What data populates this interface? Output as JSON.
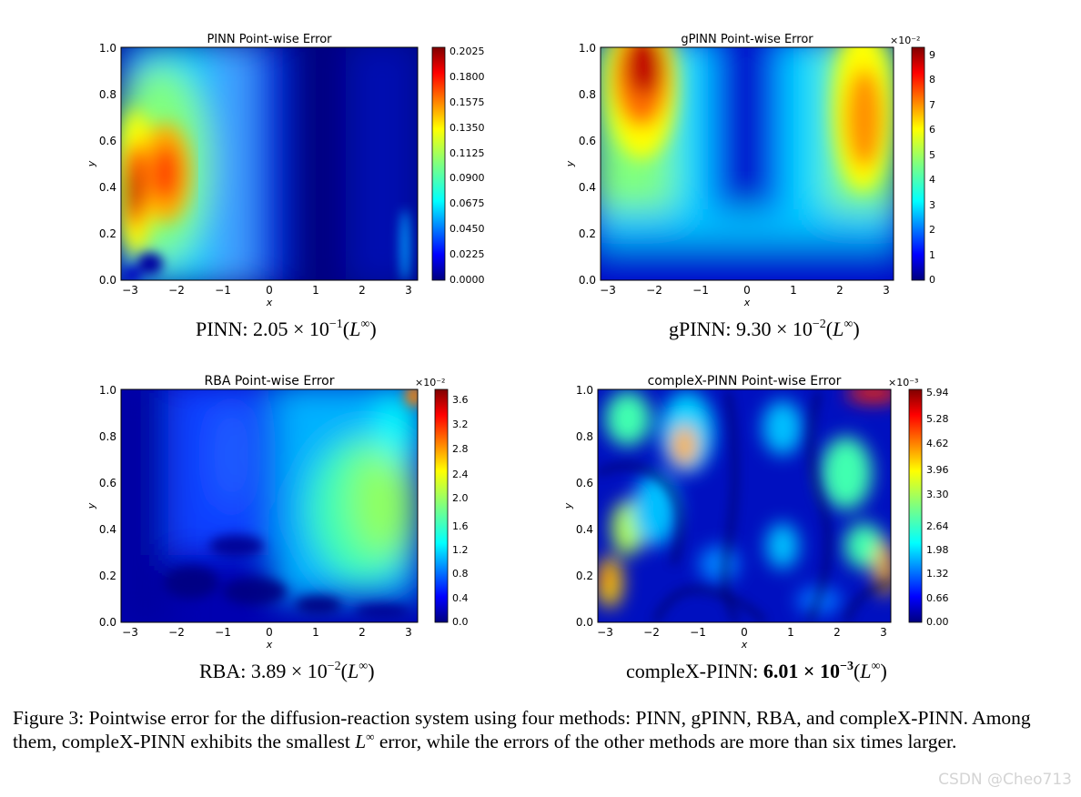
{
  "figure_panels": [
    {
      "id": "pinn",
      "title": "PINN Point-wise Error",
      "xlabel": "x",
      "ylabel": "y",
      "xticks": [
        "−3",
        "−2",
        "−1",
        "0",
        "1",
        "2",
        "3"
      ],
      "yticks": [
        "0.0",
        "0.2",
        "0.4",
        "0.6",
        "0.8",
        "1.0"
      ],
      "colorbar_ticks": [
        "0.0000",
        "0.0225",
        "0.0450",
        "0.0675",
        "0.0900",
        "0.1125",
        "0.1350",
        "0.1575",
        "0.1800",
        "0.2025"
      ],
      "colorbar_exponent": "",
      "caption_prefix": "PINN: 2.05 × 10",
      "caption_exp": "−1",
      "caption_norm": "L",
      "caption_norm_sup": "∞"
    },
    {
      "id": "gpinn",
      "title": "gPINN Point-wise Error",
      "xlabel": "x",
      "ylabel": "y",
      "xticks": [
        "−3",
        "−2",
        "−1",
        "0",
        "1",
        "2",
        "3"
      ],
      "yticks": [
        "0.0",
        "0.2",
        "0.4",
        "0.6",
        "0.8",
        "1.0"
      ],
      "colorbar_ticks": [
        "0",
        "1",
        "2",
        "3",
        "4",
        "5",
        "6",
        "7",
        "8",
        "9"
      ],
      "colorbar_exponent": "×10⁻²",
      "caption_prefix": "gPINN: 9.30 × 10",
      "caption_exp": "−2",
      "caption_norm": "L",
      "caption_norm_sup": "∞"
    },
    {
      "id": "rba",
      "title": "RBA Point-wise Error",
      "xlabel": "x",
      "ylabel": "y",
      "xticks": [
        "−3",
        "−2",
        "−1",
        "0",
        "1",
        "2",
        "3"
      ],
      "yticks": [
        "0.0",
        "0.2",
        "0.4",
        "0.6",
        "0.8",
        "1.0"
      ],
      "colorbar_ticks": [
        "0.0",
        "0.4",
        "0.8",
        "1.2",
        "1.6",
        "2.0",
        "2.4",
        "2.8",
        "3.2",
        "3.6"
      ],
      "colorbar_exponent": "×10⁻²",
      "caption_prefix": "RBA: 3.89 × 10",
      "caption_exp": "−2",
      "caption_norm": "L",
      "caption_norm_sup": "∞"
    },
    {
      "id": "complex",
      "title": "compleX-PINN Point-wise Error",
      "xlabel": "x",
      "ylabel": "y",
      "xticks": [
        "−3",
        "−2",
        "−1",
        "0",
        "1",
        "2",
        "3"
      ],
      "yticks": [
        "0.0",
        "0.2",
        "0.4",
        "0.6",
        "0.8",
        "1.0"
      ],
      "colorbar_ticks": [
        "0.00",
        "0.66",
        "1.32",
        "1.98",
        "2.64",
        "3.30",
        "3.96",
        "4.62",
        "5.28",
        "5.94"
      ],
      "colorbar_exponent": "×10⁻³",
      "caption_prefix": "compleX-PINN: ",
      "caption_bold": "6.01 × 10",
      "caption_exp": "−3",
      "caption_norm": "L",
      "caption_norm_sup": "∞"
    }
  ],
  "chart_data": [
    {
      "type": "heatmap",
      "title": "PINN Point-wise Error",
      "xlabel": "x",
      "ylabel": "y",
      "xlim": [
        -3.14,
        3.14
      ],
      "ylim": [
        0,
        1
      ],
      "colorbar_range": [
        0,
        0.2025
      ],
      "max_error_Linf": 0.205,
      "hotspots": [
        {
          "x": -2.85,
          "y": 0.4,
          "value": 0.2025
        },
        {
          "x": -2.3,
          "y": 0.4,
          "value": 0.17
        }
      ]
    },
    {
      "type": "heatmap",
      "title": "gPINN Point-wise Error",
      "xlabel": "x",
      "ylabel": "y",
      "xlim": [
        -3.14,
        3.14
      ],
      "ylim": [
        0,
        1
      ],
      "colorbar_range": [
        0,
        0.093
      ],
      "max_error_Linf": 0.093,
      "hotspots": [
        {
          "x": -2.2,
          "y": 0.95,
          "value": 0.09
        },
        {
          "x": 2.4,
          "y": 0.7,
          "value": 0.075
        }
      ]
    },
    {
      "type": "heatmap",
      "title": "RBA Point-wise Error",
      "xlabel": "x",
      "ylabel": "y",
      "xlim": [
        -3.14,
        3.14
      ],
      "ylim": [
        0,
        1
      ],
      "colorbar_range": [
        0,
        0.0389
      ],
      "max_error_Linf": 0.0389,
      "hotspots": [
        {
          "x": 3.1,
          "y": 1.0,
          "value": 0.037
        },
        {
          "x": 2.6,
          "y": 0.5,
          "value": 0.024
        }
      ]
    },
    {
      "type": "heatmap",
      "title": "compleX-PINN Point-wise Error",
      "xlabel": "x",
      "ylabel": "y",
      "xlim": [
        -3.14,
        3.14
      ],
      "ylim": [
        0,
        1
      ],
      "colorbar_range": [
        0,
        0.00601
      ],
      "max_error_Linf": 0.00601,
      "hotspots": [
        {
          "x": 2.5,
          "y": 1.0,
          "value": 0.0059
        },
        {
          "x": -1.3,
          "y": 0.75,
          "value": 0.0047
        },
        {
          "x": 3.0,
          "y": 0.22,
          "value": 0.0045
        },
        {
          "x": -3.0,
          "y": 0.17,
          "value": 0.0044
        },
        {
          "x": -2.6,
          "y": 0.42,
          "value": 0.004
        }
      ]
    }
  ],
  "figure_caption": {
    "part1": "Figure 3: Pointwise error for the diffusion-reaction system using four methods: PINN, gPINN, RBA, and compleX-PINN. Among them, compleX-PINN exhibits the smallest ",
    "norm": "L",
    "norm_sup": "∞",
    "part2": " error, while the errors of the other methods are more than six times larger."
  },
  "watermark": "CSDN @Cheo713",
  "colormap": [
    "#00007f",
    "#0000ff",
    "#007fff",
    "#00ffff",
    "#7fff7f",
    "#ffff00",
    "#ff7f00",
    "#ff0000",
    "#7f0000"
  ]
}
